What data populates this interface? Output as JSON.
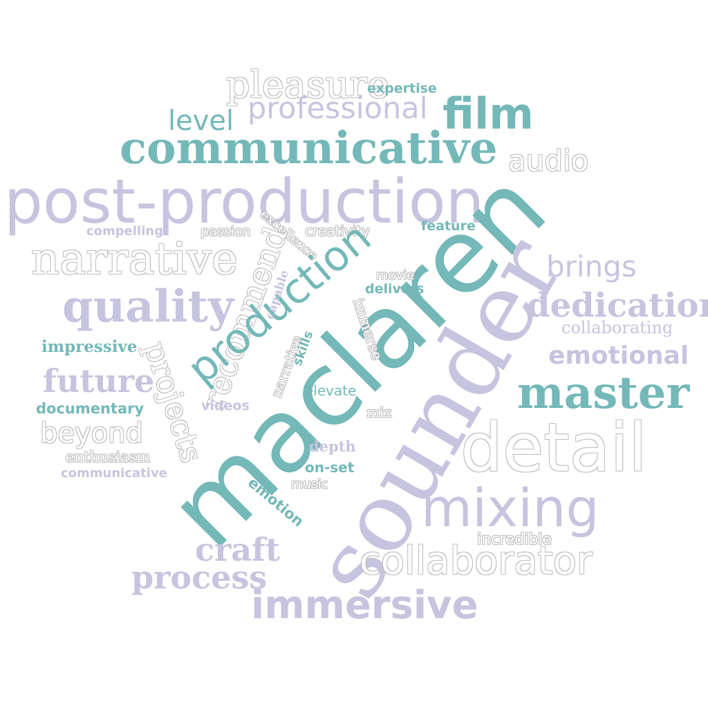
{
  "colors": {
    "teal": "#74b8b8",
    "lavender": "#c7c4df",
    "outline": "#ffffff",
    "background": "#ffffff"
  },
  "words": [
    {
      "text": "pleasure",
      "color": "outline"
    },
    {
      "text": "expertise",
      "color": "teal"
    },
    {
      "text": "professional",
      "color": "lavender"
    },
    {
      "text": "film",
      "color": "teal"
    },
    {
      "text": "level",
      "color": "teal"
    },
    {
      "text": "communicative",
      "color": "teal"
    },
    {
      "text": "audio",
      "color": "outline"
    },
    {
      "text": "post-production",
      "color": "lavender"
    },
    {
      "text": "compelling",
      "color": "lavender"
    },
    {
      "text": "passion",
      "color": "outline"
    },
    {
      "text": "excellence",
      "color": "outline"
    },
    {
      "text": "creativity",
      "color": "outline"
    },
    {
      "text": "feature",
      "color": "teal"
    },
    {
      "text": "narrative",
      "color": "outline"
    },
    {
      "text": "recommend",
      "color": "outline"
    },
    {
      "text": "production",
      "color": "teal"
    },
    {
      "text": "maclaren",
      "color": "teal"
    },
    {
      "text": "sounder",
      "color": "lavender"
    },
    {
      "text": "brings",
      "color": "lavender"
    },
    {
      "text": "quality",
      "color": "lavender"
    },
    {
      "text": "capable",
      "color": "lavender"
    },
    {
      "text": "movie",
      "color": "outline"
    },
    {
      "text": "delivers",
      "color": "teal"
    },
    {
      "text": "dedication",
      "color": "lavender"
    },
    {
      "text": "immerse",
      "color": "outline"
    },
    {
      "text": "collaborating",
      "color": "lavender"
    },
    {
      "text": "impressive",
      "color": "teal"
    },
    {
      "text": "projects",
      "color": "outline"
    },
    {
      "text": "narrative",
      "color": "outline"
    },
    {
      "text": "skills",
      "color": "teal"
    },
    {
      "text": "emotional",
      "color": "lavender"
    },
    {
      "text": "future",
      "color": "lavender"
    },
    {
      "text": "master",
      "color": "teal"
    },
    {
      "text": "elevate",
      "color": "teal"
    },
    {
      "text": "documentary",
      "color": "teal"
    },
    {
      "text": "videos",
      "color": "lavender"
    },
    {
      "text": "mix",
      "color": "outline"
    },
    {
      "text": "beyond",
      "color": "outline"
    },
    {
      "text": "detail",
      "color": "outline"
    },
    {
      "text": "depth",
      "color": "lavender"
    },
    {
      "text": "enthusiasm",
      "color": "outline"
    },
    {
      "text": "on-set",
      "color": "teal"
    },
    {
      "text": "communicative",
      "color": "lavender"
    },
    {
      "text": "music",
      "color": "outline"
    },
    {
      "text": "emotion",
      "color": "teal"
    },
    {
      "text": "mixing",
      "color": "lavender"
    },
    {
      "text": "incredible",
      "color": "outline"
    },
    {
      "text": "craft",
      "color": "lavender"
    },
    {
      "text": "collaborator",
      "color": "outline"
    },
    {
      "text": "process",
      "color": "lavender"
    },
    {
      "text": "immersive",
      "color": "lavender"
    }
  ]
}
